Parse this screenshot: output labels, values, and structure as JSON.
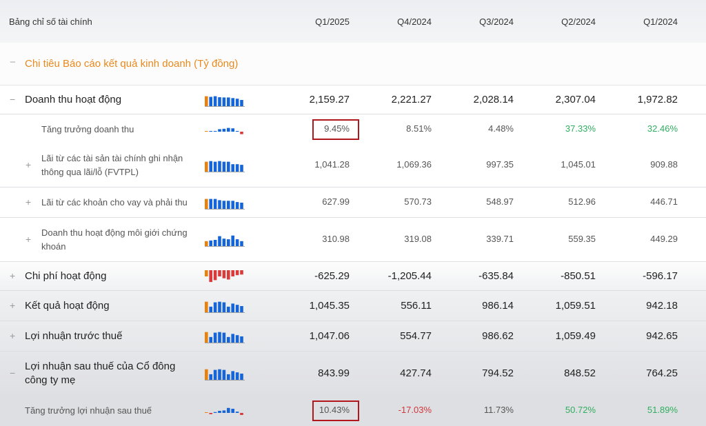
{
  "header": {
    "label": "Bảng chỉ số tài chính",
    "periods": [
      "Q1/2025",
      "Q4/2024",
      "Q3/2024",
      "Q2/2024",
      "Q1/2024"
    ]
  },
  "section": {
    "title": "Chi tiêu Báo cáo kết quả kinh doanh (Tỷ đồng)",
    "toggle": "−"
  },
  "colors": {
    "accent": "#e8891b",
    "bar_blue": "#1565d8",
    "bar_orange": "#e8820c",
    "bar_red": "#d93a3a",
    "positive": "#2fae5f",
    "negative": "#d0363b",
    "highlight_box": "#b0161c"
  },
  "rows": [
    {
      "label": "Doanh thu hoạt động",
      "toggle": "−",
      "kind": "main",
      "values": [
        "2,159.27",
        "2,221.27",
        "2,028.14",
        "2,307.04",
        "1,972.82"
      ],
      "spark": [
        0.8,
        0.75,
        0.8,
        0.72,
        0.7,
        0.7,
        0.65,
        0.6,
        0.5
      ]
    },
    {
      "label": "Tăng trưởng doanh thu",
      "toggle": "",
      "kind": "sub",
      "values": [
        "9.45%",
        "8.51%",
        "4.48%",
        "37.33%",
        "32.46%"
      ],
      "value_status": [
        "neutral",
        "neutral",
        "neutral",
        "positive",
        "positive"
      ],
      "highlight": 0,
      "spark": [
        0.05,
        0.05,
        0,
        0.3,
        0.35,
        0.45,
        0.4,
        0,
        -0.3
      ]
    },
    {
      "label": "Lãi từ các tài sản tài chính ghi nhận thông qua lãi/lỗ (FVTPL)",
      "toggle": "+",
      "kind": "sub",
      "values": [
        "1,041.28",
        "1,069.36",
        "997.35",
        "1,045.01",
        "909.88"
      ],
      "spark": [
        0.8,
        0.85,
        0.8,
        0.85,
        0.8,
        0.8,
        0.6,
        0.6,
        0.55
      ]
    },
    {
      "label": "Lãi từ các khoản cho vay và phải thu",
      "toggle": "+",
      "kind": "sub",
      "values": [
        "627.99",
        "570.73",
        "548.97",
        "512.96",
        "446.71"
      ],
      "spark": [
        0.8,
        0.8,
        0.8,
        0.7,
        0.65,
        0.65,
        0.65,
        0.55,
        0.5
      ]
    },
    {
      "label": "Doanh thu hoạt động môi giới chứng khoán",
      "toggle": "+",
      "kind": "sub",
      "values": [
        "310.98",
        "319.08",
        "339.71",
        "559.35",
        "449.29"
      ],
      "spark": [
        0.4,
        0.45,
        0.5,
        0.8,
        0.6,
        0.55,
        0.85,
        0.55,
        0.4
      ]
    },
    {
      "label": "Chi phí hoạt động",
      "toggle": "+",
      "kind": "main",
      "values": [
        "-625.29",
        "-1,205.44",
        "-635.84",
        "-850.51",
        "-596.17"
      ],
      "spark": [
        -0.5,
        -0.95,
        -0.8,
        -0.5,
        -0.65,
        -0.75,
        -0.5,
        -0.4,
        -0.35
      ]
    },
    {
      "label": "Kết quả hoạt động",
      "toggle": "+",
      "kind": "main",
      "values": [
        "1,045.35",
        "556.11",
        "986.14",
        "1,059.51",
        "942.18"
      ],
      "spark": [
        0.85,
        0.45,
        0.8,
        0.85,
        0.8,
        0.45,
        0.7,
        0.6,
        0.5
      ]
    },
    {
      "label": "Lợi nhuận trước thuế",
      "toggle": "+",
      "kind": "main",
      "values": [
        "1,047.06",
        "554.77",
        "986.62",
        "1,059.49",
        "942.65"
      ],
      "spark": [
        0.85,
        0.45,
        0.8,
        0.85,
        0.8,
        0.45,
        0.7,
        0.6,
        0.5
      ]
    },
    {
      "label": "Lợi nhuận sau thuế của Cổ đông công ty mẹ",
      "toggle": "−",
      "kind": "main",
      "values": [
        "843.99",
        "427.74",
        "794.52",
        "848.52",
        "764.25"
      ],
      "spark": [
        0.85,
        0.45,
        0.8,
        0.85,
        0.8,
        0.45,
        0.7,
        0.6,
        0.5
      ]
    },
    {
      "label": "Tăng trưởng lợi nhuận sau thuế",
      "toggle": "",
      "kind": "sub",
      "values": [
        "10.43%",
        "-17.03%",
        "11.73%",
        "50.72%",
        "51.89%"
      ],
      "value_status": [
        "neutral",
        "negative",
        "neutral",
        "positive",
        "positive"
      ],
      "highlight": 0,
      "spark": [
        0.05,
        -0.15,
        0.1,
        0.25,
        0.3,
        0.6,
        0.5,
        0.15,
        -0.25
      ]
    }
  ]
}
